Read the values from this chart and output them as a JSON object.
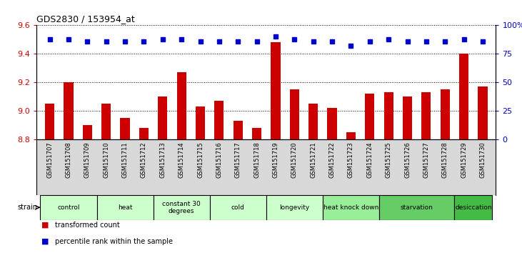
{
  "title": "GDS2830 / 153954_at",
  "samples": [
    "GSM151707",
    "GSM151708",
    "GSM151709",
    "GSM151710",
    "GSM151711",
    "GSM151712",
    "GSM151713",
    "GSM151714",
    "GSM151715",
    "GSM151716",
    "GSM151717",
    "GSM151718",
    "GSM151719",
    "GSM151720",
    "GSM151721",
    "GSM151722",
    "GSM151723",
    "GSM151724",
    "GSM151725",
    "GSM151726",
    "GSM151727",
    "GSM151728",
    "GSM151729",
    "GSM151730"
  ],
  "bar_values": [
    9.05,
    9.2,
    8.9,
    9.05,
    8.95,
    8.88,
    9.1,
    9.27,
    9.03,
    9.07,
    8.93,
    8.88,
    9.48,
    9.15,
    9.05,
    9.02,
    8.85,
    9.12,
    9.13,
    9.1,
    9.13,
    9.15,
    9.4,
    9.17
  ],
  "percentile_values": [
    88,
    88,
    86,
    86,
    86,
    86,
    88,
    88,
    86,
    86,
    86,
    86,
    90,
    88,
    86,
    86,
    82,
    86,
    88,
    86,
    86,
    86,
    88,
    86
  ],
  "ylim_left": [
    8.8,
    9.6
  ],
  "ylim_right": [
    0,
    100
  ],
  "yticks_left": [
    8.8,
    9.0,
    9.2,
    9.4,
    9.6
  ],
  "yticks_right": [
    0,
    25,
    50,
    75,
    100
  ],
  "ytick_labels_right": [
    "0",
    "25",
    "50",
    "75",
    "100%"
  ],
  "groups": [
    {
      "label": "control",
      "start": 0,
      "end": 2,
      "color": "#ccffcc"
    },
    {
      "label": "heat",
      "start": 3,
      "end": 5,
      "color": "#ccffcc"
    },
    {
      "label": "constant 30\ndegrees",
      "start": 6,
      "end": 8,
      "color": "#ccffcc"
    },
    {
      "label": "cold",
      "start": 9,
      "end": 11,
      "color": "#ccffcc"
    },
    {
      "label": "longevity",
      "start": 12,
      "end": 14,
      "color": "#ccffcc"
    },
    {
      "label": "heat knock down",
      "start": 15,
      "end": 17,
      "color": "#99ee99"
    },
    {
      "label": "starvation",
      "start": 18,
      "end": 21,
      "color": "#66cc66"
    },
    {
      "label": "desiccation",
      "start": 22,
      "end": 23,
      "color": "#44bb44"
    }
  ],
  "bar_color": "#cc0000",
  "dot_color": "#0000cc",
  "ylabel_left_color": "#cc0000",
  "ylabel_right_color": "#0000cc",
  "legend_items": [
    {
      "label": "transformed count",
      "color": "#cc0000"
    },
    {
      "label": "percentile rank within the sample",
      "color": "#0000cc"
    }
  ],
  "strain_label": "strain",
  "xtick_bg_color": "#d8d8d8",
  "plot_bg_color": "#ffffff"
}
